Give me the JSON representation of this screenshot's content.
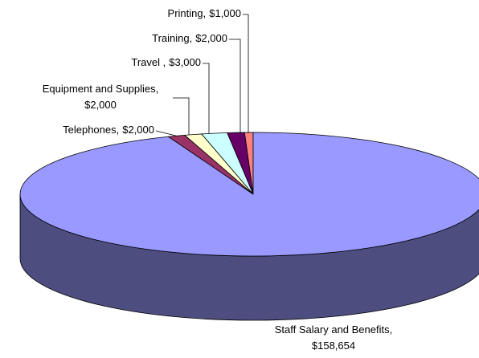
{
  "chart_data": {
    "type": "pie3d",
    "categories": [
      "Printing,",
      "Training,",
      "Travel ,",
      "Equipment and Supplies,",
      "Telephones,",
      "Staff Salary  and Benefits,"
    ],
    "values": [
      1000,
      2000,
      3000,
      2000,
      2000,
      158654
    ],
    "value_labels": [
      "$1,000",
      "$2,000",
      "$3,000",
      "$2,000",
      "$2,000",
      "$158,654"
    ],
    "colors": [
      "#ff8080",
      "#660066",
      "#ccffff",
      "#ffffcc",
      "#993366",
      "#9999ff"
    ],
    "side_color": "#4d4d80"
  }
}
